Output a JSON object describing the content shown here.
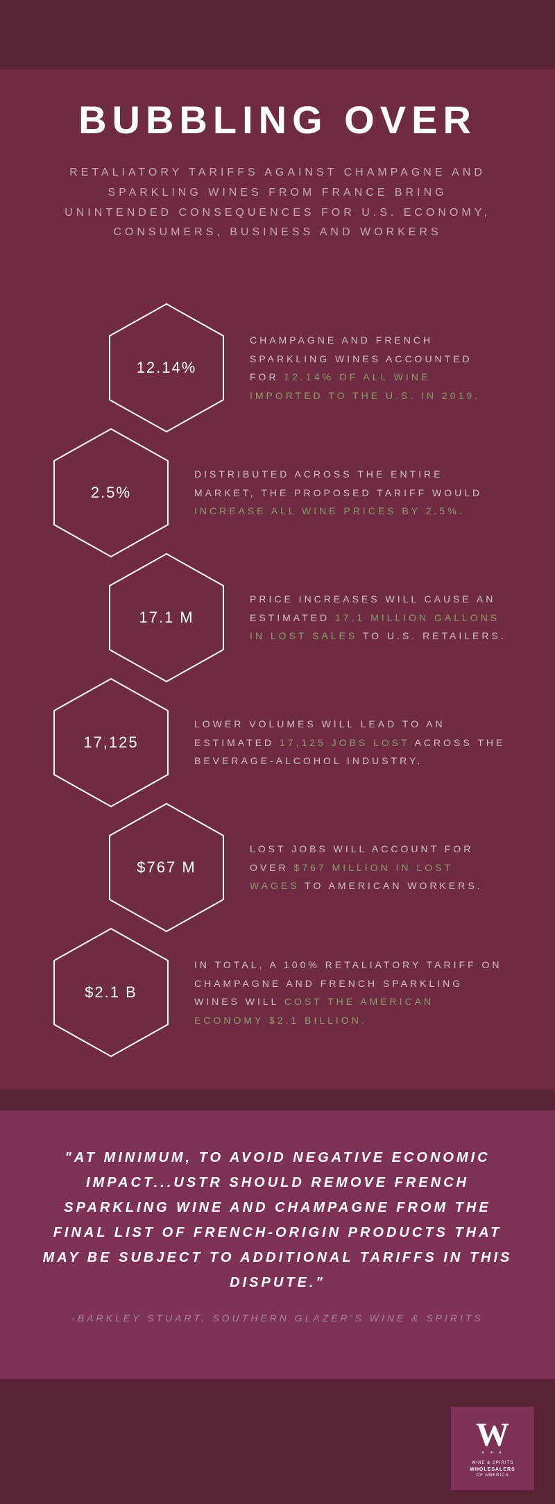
{
  "header": {
    "title": "BUBBLING OVER",
    "subtitle": "RETALIATORY TARIFFS AGAINST CHAMPAGNE AND SPARKLING WINES FROM FRANCE BRING UNINTENDED CONSEQUENCES FOR U.S. ECONOMY, CONSUMERS, BUSINESS AND WORKERS"
  },
  "stats": [
    {
      "value": "12.14%",
      "offset": "offset-1",
      "text_pre": "CHAMPAGNE AND FRENCH SPARKLING WINES ACCOUNTED FOR ",
      "text_hl": "12.14% OF ALL WINE IMPORTED TO THE U.S. IN 2019.",
      "text_post": ""
    },
    {
      "value": "2.5%",
      "offset": "offset-2",
      "text_pre": "DISTRIBUTED ACROSS THE ENTIRE MARKET, THE PROPOSED TARIFF WOULD ",
      "text_hl": "INCREASE ALL WINE PRICES BY 2.5%.",
      "text_post": ""
    },
    {
      "value": "17.1 M",
      "offset": "offset-1",
      "text_pre": "PRICE INCREASES WILL CAUSE AN ESTIMATED ",
      "text_hl": "17.1 MILLION GALLONS IN LOST SALES",
      "text_post": " TO U.S. RETAILERS."
    },
    {
      "value": "17,125",
      "offset": "offset-2",
      "text_pre": "LOWER VOLUMES WILL LEAD TO AN ESTIMATED ",
      "text_hl": "17,125 JOBS LOST",
      "text_post": " ACROSS THE BEVERAGE-ALCOHOL INDUSTRY."
    },
    {
      "value": "$767 M",
      "offset": "offset-1",
      "text_pre": "LOST JOBS WILL ACCOUNT FOR OVER ",
      "text_hl": "$767 MILLION IN LOST WAGES",
      "text_post": " TO AMERICAN WORKERS."
    },
    {
      "value": "$2.1 B",
      "offset": "offset-2",
      "text_pre": "IN TOTAL, A 100% RETALIATORY TARIFF ON CHAMPAGNE AND FRENCH SPARKLING WINES WILL ",
      "text_hl": "COST THE AMERICAN ECONOMY $2.1 BILLION.",
      "text_post": ""
    }
  ],
  "quote": {
    "text": "\"AT MINIMUM,  TO AVOID NEGATIVE ECONOMIC IMPACT...USTR SHOULD REMOVE FRENCH SPARKLING WINE AND CHAMPAGNE FROM THE FINAL LIST OF FRENCH-ORIGIN PRODUCTS THAT MAY BE SUBJECT TO ADDITIONAL TARIFFS IN THIS DISPUTE.\"",
    "attribution": "-BARKLEY STUART, SOUTHERN GLAZER'S WINE & SPIRITS"
  },
  "logo": {
    "letter": "W",
    "line1": "WINE & SPIRITS",
    "line2": "WHOLESALERS",
    "line3": "OF AMERICA"
  },
  "style": {
    "hex_stroke": "#ffffff",
    "hex_stroke_width": 2,
    "highlight_color": "#8a9d6b",
    "bg_outer": "#5a2434",
    "bg_main": "#6e2b42",
    "bg_quote": "#7d3256"
  }
}
